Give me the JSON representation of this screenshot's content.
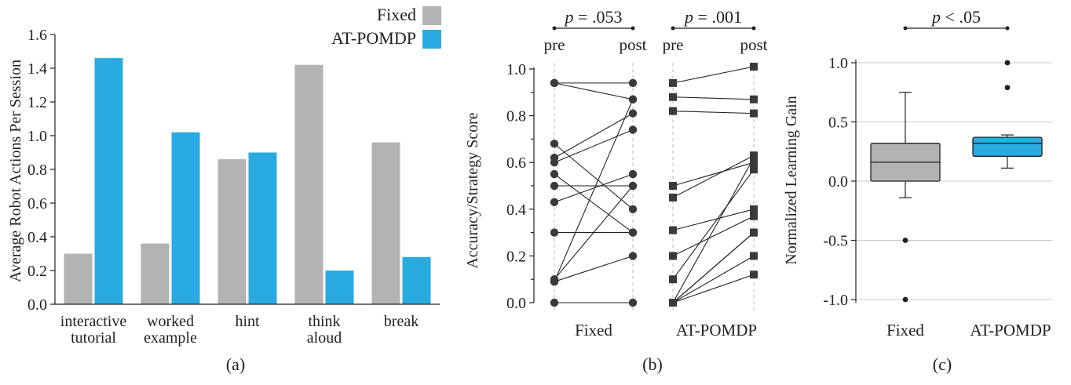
{
  "colors": {
    "fixed": "#b3b3b3",
    "atpomdp": "#29abe2",
    "ink": "#222222"
  },
  "chart_data": [
    {
      "id": "a",
      "type": "bar",
      "panel_label": "(a)",
      "ylabel": "Average Robot Actions Per Session",
      "ylim": [
        0,
        1.6
      ],
      "yticks": [
        "0.0",
        "0.2",
        "0.4",
        "0.6",
        "0.8",
        "1.0",
        "1.2",
        "1.4",
        "1.6"
      ],
      "categories": [
        [
          "interactive",
          "tutorial"
        ],
        [
          "worked",
          "example"
        ],
        [
          "hint"
        ],
        [
          "think",
          "aloud"
        ],
        [
          "break"
        ]
      ],
      "series": [
        {
          "name": "Fixed",
          "values": [
            0.3,
            0.36,
            0.86,
            1.42,
            0.96
          ]
        },
        {
          "name": "AT-POMDP",
          "values": [
            1.46,
            1.02,
            0.9,
            0.2,
            0.28
          ]
        }
      ],
      "legend": "top-right"
    },
    {
      "id": "b",
      "type": "scatter",
      "panel_label": "(b)",
      "ylabel": "Accuracy/Strategy Score",
      "ylim": [
        0,
        1.0
      ],
      "yticks": [
        "0.0",
        "0.2",
        "0.4",
        "0.6",
        "0.8",
        "1.0"
      ],
      "groups": [
        {
          "name": "Fixed",
          "marker": "circle",
          "pvalue": ".053",
          "pre_label": "pre",
          "post_label": "post",
          "pairs": [
            [
              0.94,
              0.94
            ],
            [
              0.94,
              0.87
            ],
            [
              0.68,
              0.4
            ],
            [
              0.62,
              0.81
            ],
            [
              0.6,
              0.74
            ],
            [
              0.55,
              0.3
            ],
            [
              0.5,
              0.5
            ],
            [
              0.43,
              0.55
            ],
            [
              0.3,
              0.3
            ],
            [
              0.1,
              0.5
            ],
            [
              0.09,
              0.87
            ],
            [
              0.09,
              0.2
            ],
            [
              0.0,
              0.0
            ]
          ]
        },
        {
          "name": "AT-POMDP",
          "marker": "square",
          "pvalue": ".001",
          "pre_label": "pre",
          "post_label": "post",
          "pairs": [
            [
              0.94,
              1.01
            ],
            [
              0.88,
              0.87
            ],
            [
              0.82,
              0.81
            ],
            [
              0.5,
              0.6
            ],
            [
              0.45,
              0.63
            ],
            [
              0.31,
              0.4
            ],
            [
              0.2,
              0.37
            ],
            [
              0.1,
              0.57
            ],
            [
              0.0,
              0.62
            ],
            [
              0.0,
              0.3
            ],
            [
              0.0,
              0.2
            ],
            [
              0.0,
              0.12
            ],
            [
              0.0,
              0.3
            ]
          ]
        }
      ]
    },
    {
      "id": "c",
      "type": "box",
      "panel_label": "(c)",
      "ylabel": "Normalized Learning Gain",
      "ylim": [
        -1.0,
        1.0
      ],
      "yticks": [
        "-1.0",
        "-0.5",
        "0.0",
        "0.5",
        "1.0"
      ],
      "pvalue": "< .05",
      "boxes": [
        {
          "name": "Fixed",
          "whisker_low": -0.14,
          "q1": 0.0,
          "median": 0.16,
          "q3": 0.32,
          "whisker_high": 0.75,
          "outliers": [
            -0.5,
            -1.0
          ]
        },
        {
          "name": "AT-POMDP",
          "whisker_low": 0.11,
          "q1": 0.21,
          "median": 0.32,
          "q3": 0.37,
          "whisker_high": 0.39,
          "outliers": [
            0.79,
            1.0
          ]
        }
      ]
    }
  ]
}
